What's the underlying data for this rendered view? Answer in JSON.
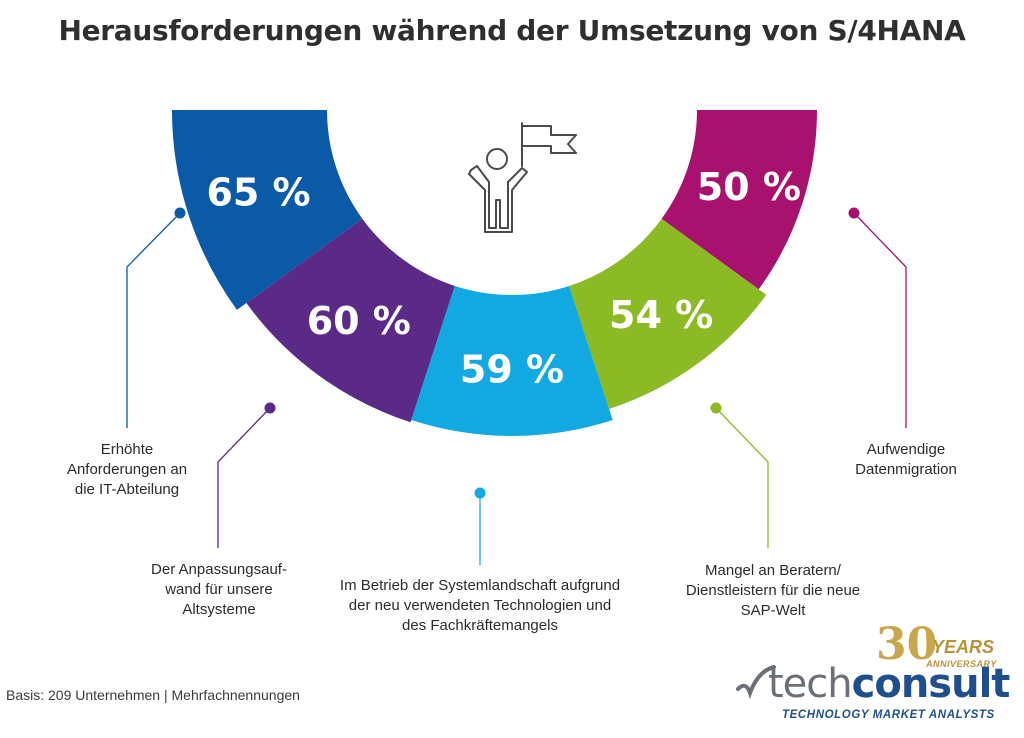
{
  "title": "Herausforderungen während der Umsetzung von S/4HANA",
  "basis": "Basis: 209 Unternehmen | Mehrfachnennungen",
  "chart_data": {
    "type": "pie",
    "title": "Herausforderungen während der Umsetzung von S/4HANA",
    "unit": "%",
    "segments": [
      {
        "label": "Erhöhte Anforderungen an die IT-Abteilung",
        "value": 65,
        "value_label": "65 %",
        "color": "#0a5aa8"
      },
      {
        "label": "Der Anpassungsaufwand für unsere Altsysteme",
        "value": 60,
        "value_label": "60 %",
        "color": "#5b2a86"
      },
      {
        "label": "Im Betrieb der Systemlandschaft aufgrund der neu verwendeten Technologien und des Fachkräftemangels",
        "value": 59,
        "value_label": "59 %",
        "color": "#12a9e2"
      },
      {
        "label": "Mangel an Beratern/ Dienstleistern für die neue SAP-Welt",
        "value": 54,
        "value_label": "54 %",
        "color": "#8cba25"
      },
      {
        "label": "Aufwendige Datenmigration",
        "value": 50,
        "value_label": "50 %",
        "color": "#a8126e"
      }
    ]
  },
  "labels": {
    "cat0": [
      "Erhöhte",
      "Anforderungen an",
      "die IT-Abteilung"
    ],
    "cat1": [
      "Der Anpassungsauf-",
      "wand für unsere",
      "Altsysteme"
    ],
    "cat2": [
      "Im Betrieb der Systemlandschaft aufgrund",
      "der neu verwendeten Technologien und",
      "des Fachkräftemangels"
    ],
    "cat3": [
      "Mangel an Beratern/",
      "Dienstleistern für die neue",
      "SAP-Welt"
    ],
    "cat4": [
      "Aufwendige",
      "Datenmigration"
    ]
  },
  "icon": "person-with-flag-icon",
  "logo": {
    "tech": "tech",
    "consult": "consult",
    "tagline": "TECHNOLOGY MARKET ANALYSTS",
    "anniversary_number": "30",
    "anniversary_years": "YEARS",
    "anniversary_word": "ANNIVERSARY"
  }
}
